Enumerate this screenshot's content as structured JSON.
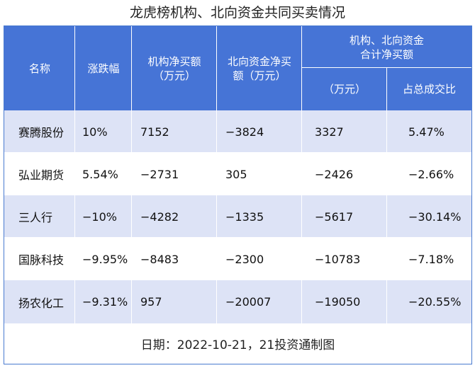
{
  "title": "龙虎榜机构、北向资金共同买卖情况",
  "header": {
    "name": "名称",
    "change": "涨跌幅",
    "inst_net": [
      "机构净买额",
      "（万元）"
    ],
    "north_net": [
      "北向资金净买",
      "额（万元）"
    ],
    "combined_group": [
      "机构、北向资金",
      "合计净买额"
    ],
    "combined_amount": "（万元）",
    "combined_ratio": "占总成交比"
  },
  "rows": [
    {
      "name": "赛腾股份",
      "change": "10%",
      "inst_net": "7152",
      "north_net": "−3824",
      "combined": "3327",
      "ratio": "5.47%"
    },
    {
      "name": "弘业期货",
      "change": "5.54%",
      "inst_net": "−2731",
      "north_net": "305",
      "combined": "−2426",
      "ratio": "−2.66%"
    },
    {
      "name": "三人行",
      "change": "−10%",
      "inst_net": "−4282",
      "north_net": "−1335",
      "combined": "−5617",
      "ratio": "−30.14%"
    },
    {
      "name": "国脉科技",
      "change": "−9.95%",
      "inst_net": "−8483",
      "north_net": "−2300",
      "combined": "−10783",
      "ratio": "−7.18%"
    },
    {
      "name": "扬农化工",
      "change": "−9.31%",
      "inst_net": "957",
      "north_net": "−20007",
      "combined": "−19050",
      "ratio": "−20.55%"
    }
  ],
  "footer": "日期：2022-10-21，21投资通制图"
}
